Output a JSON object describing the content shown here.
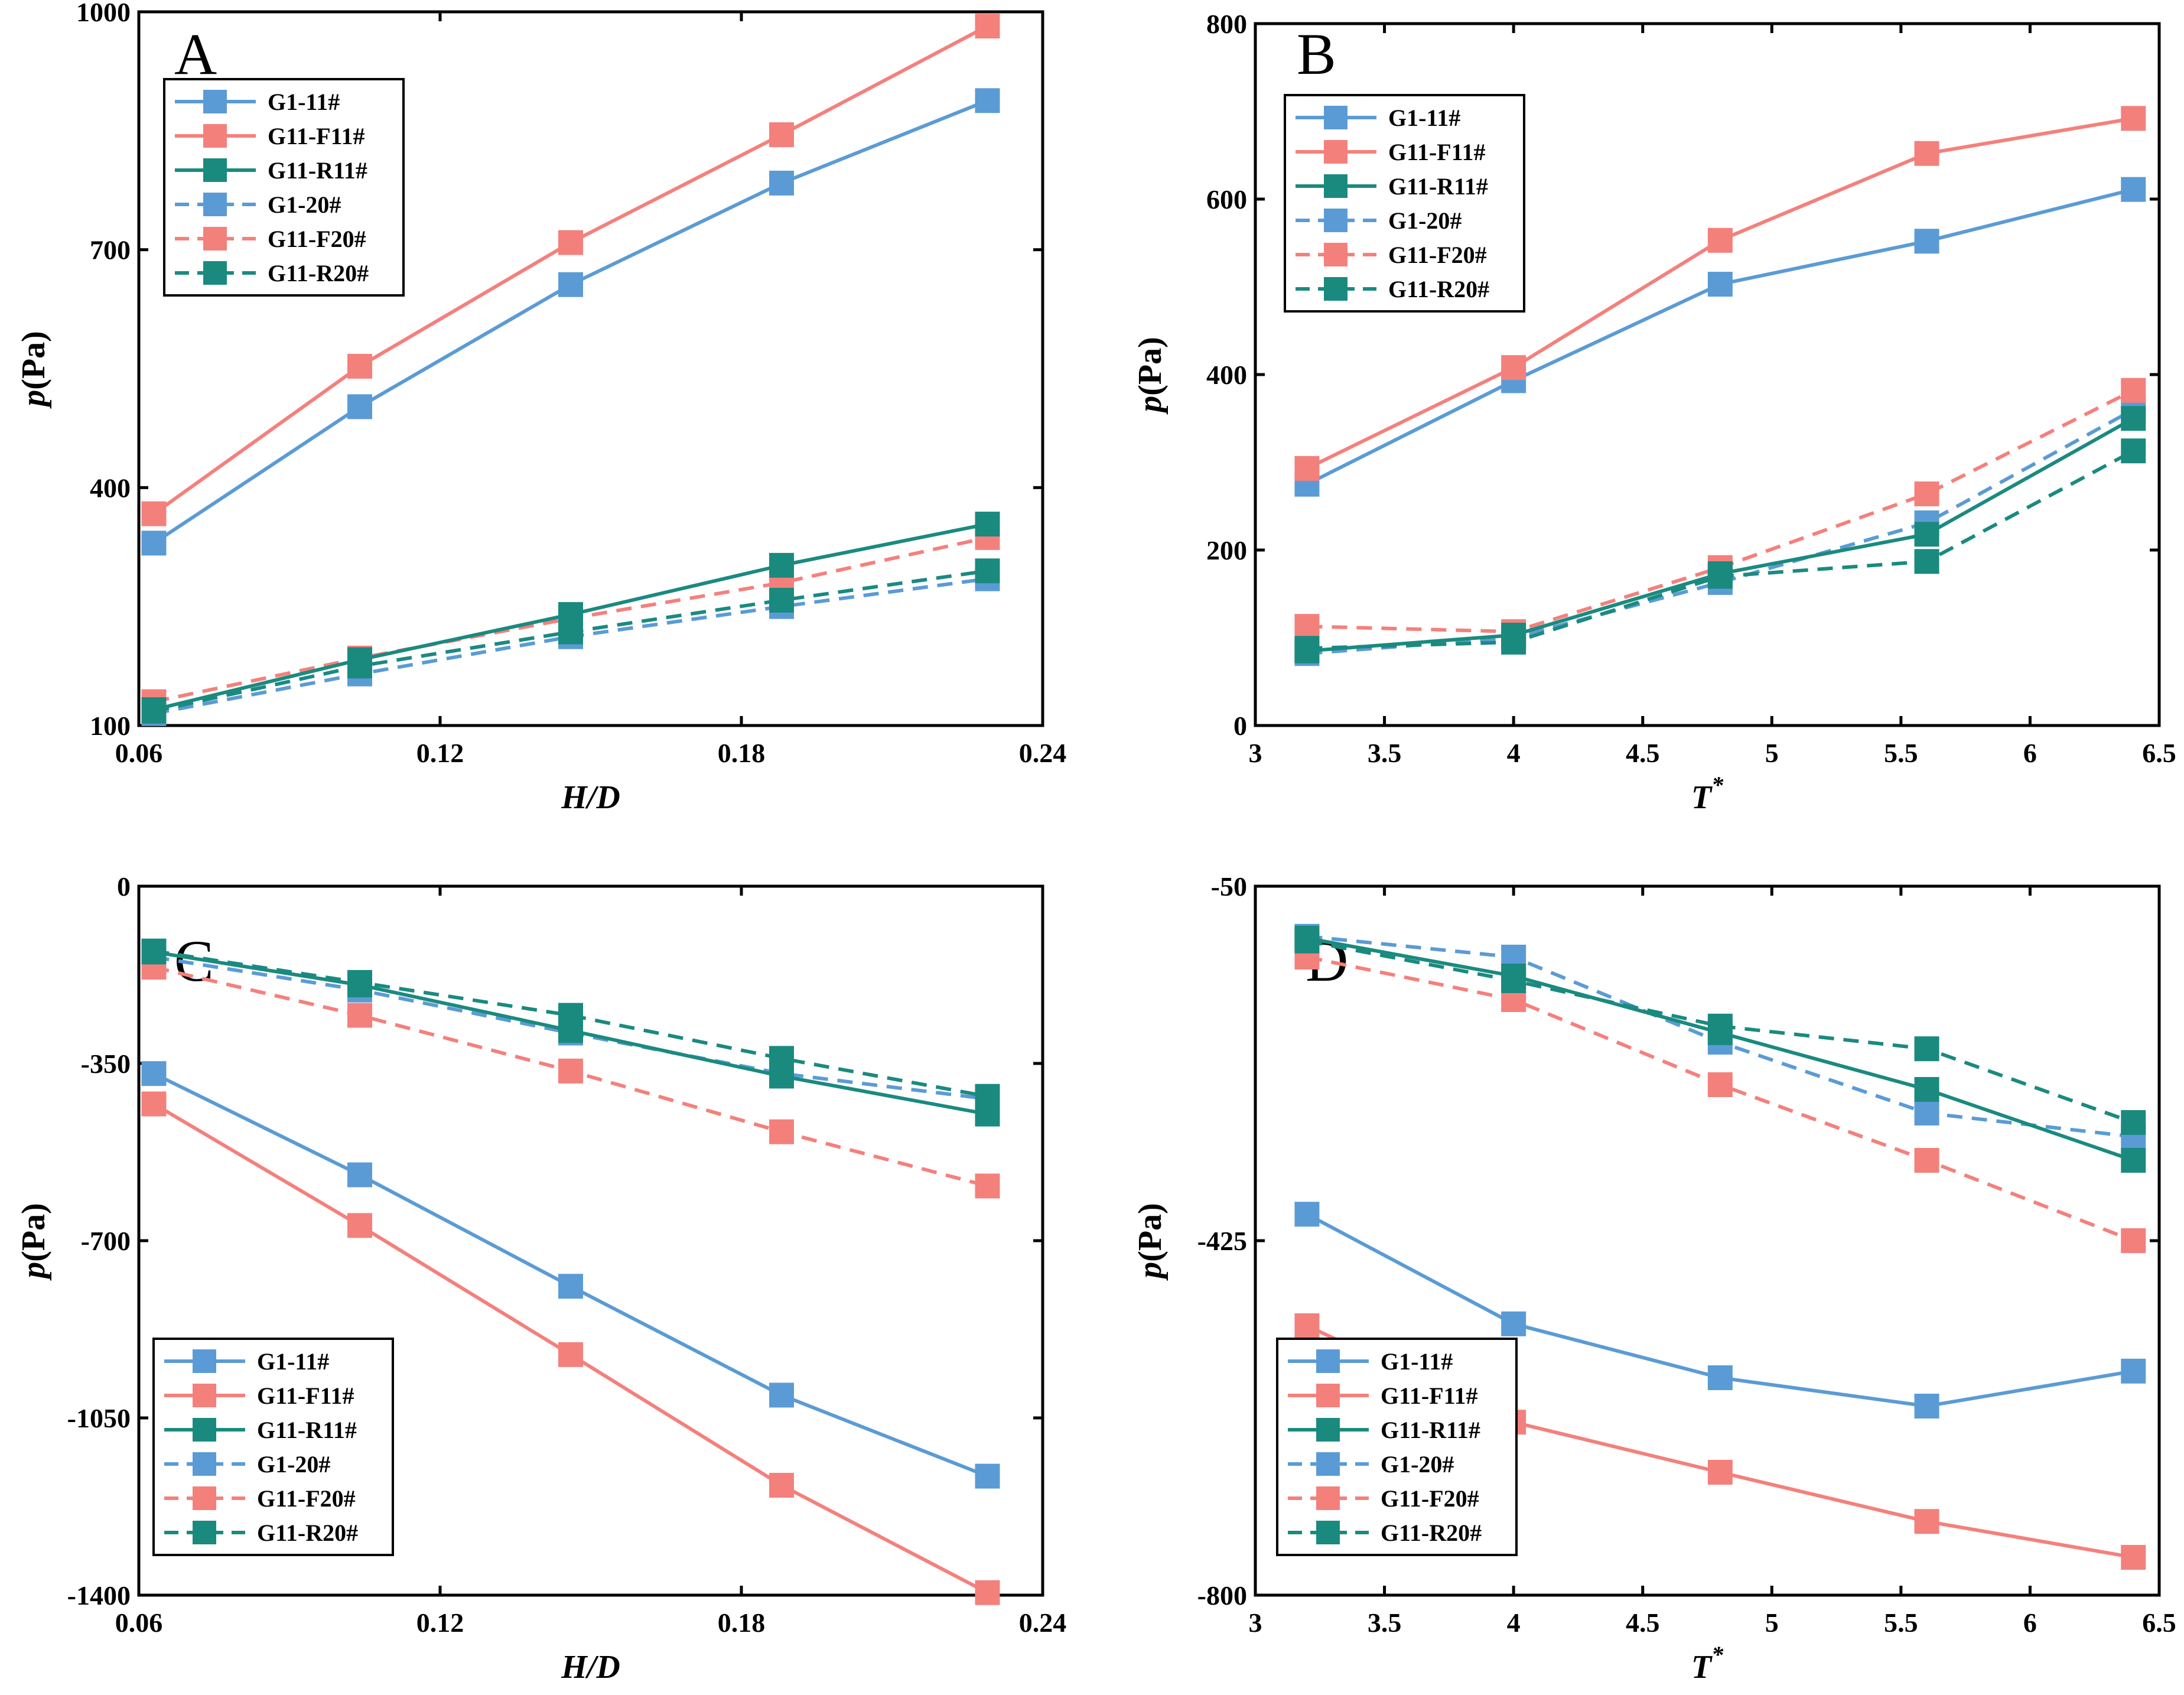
{
  "colors": {
    "blue": "#5b9bd5",
    "red": "#f4807c",
    "green": "#1a8a7f"
  },
  "chart_data": [
    {
      "id": "A",
      "type": "line",
      "panel_label": "A",
      "xlabel": "H/D",
      "ylabel_var": "p",
      "ylabel_unit": "(Pa)",
      "xlim": [
        0.06,
        0.24
      ],
      "ylim": [
        100,
        1000
      ],
      "xticks": [
        0.06,
        0.12,
        0.18,
        0.24
      ],
      "xtick_labels": [
        "0.06",
        "0.12",
        "0.18",
        "0.24"
      ],
      "yticks": [
        100,
        400,
        700,
        1000
      ],
      "ytick_labels": [
        "100",
        "400",
        "700",
        "1000"
      ],
      "x": [
        0.063,
        0.104,
        0.146,
        0.188,
        0.229
      ],
      "legend_position": "upper-left",
      "series": [
        {
          "name": "G1-11#",
          "color": "blue",
          "dashed": false,
          "values": [
            330,
            502,
            656,
            784,
            888
          ]
        },
        {
          "name": "G11-F11#",
          "color": "red",
          "dashed": false,
          "values": [
            367,
            553,
            709,
            845,
            982
          ]
        },
        {
          "name": "G11-R11#",
          "color": "green",
          "dashed": false,
          "values": [
            120,
            183,
            240,
            302,
            354
          ]
        },
        {
          "name": "G1-20#",
          "color": "blue",
          "dashed": true,
          "values": [
            115,
            165,
            212,
            250,
            285
          ]
        },
        {
          "name": "G11-F20#",
          "color": "red",
          "dashed": true,
          "values": [
            130,
            185,
            235,
            280,
            337
          ]
        },
        {
          "name": "G11-R20#",
          "color": "green",
          "dashed": true,
          "values": [
            118,
            175,
            218,
            258,
            295
          ]
        }
      ]
    },
    {
      "id": "B",
      "type": "line",
      "panel_label": "B",
      "xlabel": "T",
      "xlabel_sup": "*",
      "ylabel_var": "p",
      "ylabel_unit": "(Pa)",
      "xlim": [
        3,
        6.5
      ],
      "ylim": [
        0,
        800
      ],
      "xticks": [
        3,
        3.5,
        4,
        4.5,
        5,
        5.5,
        6,
        6.5
      ],
      "xtick_labels": [
        "3",
        "3.5",
        "4",
        "4.5",
        "5",
        "5.5",
        "6",
        "6.5"
      ],
      "yticks": [
        0,
        200,
        400,
        600,
        800
      ],
      "ytick_labels": [
        "0",
        "200",
        "400",
        "600",
        "800"
      ],
      "x": [
        3.2,
        4.0,
        4.8,
        5.6,
        6.4
      ],
      "legend_position": "upper-left",
      "series": [
        {
          "name": "G1-11#",
          "color": "blue",
          "dashed": false,
          "values": [
            275,
            393,
            503,
            552,
            611
          ]
        },
        {
          "name": "G11-F11#",
          "color": "red",
          "dashed": false,
          "values": [
            293,
            408,
            553,
            652,
            692
          ]
        },
        {
          "name": "G11-R11#",
          "color": "green",
          "dashed": false,
          "values": [
            85,
            103,
            173,
            218,
            350
          ]
        },
        {
          "name": "G1-20#",
          "color": "blue",
          "dashed": true,
          "values": [
            82,
            100,
            163,
            231,
            360
          ]
        },
        {
          "name": "G11-F20#",
          "color": "red",
          "dashed": true,
          "values": [
            113,
            107,
            180,
            264,
            382
          ]
        },
        {
          "name": "G11-R20#",
          "color": "green",
          "dashed": true,
          "values": [
            88,
            95,
            170,
            187,
            313
          ]
        }
      ]
    },
    {
      "id": "C",
      "type": "line",
      "panel_label": "C",
      "xlabel": "H/D",
      "ylabel_var": "p",
      "ylabel_unit": "(Pa)",
      "xlim": [
        0.06,
        0.24
      ],
      "ylim": [
        -1400,
        0
      ],
      "xticks": [
        0.06,
        0.12,
        0.18,
        0.24
      ],
      "xtick_labels": [
        "0.06",
        "0.12",
        "0.18",
        "0.24"
      ],
      "yticks": [
        -1400,
        -1050,
        -700,
        -350,
        0
      ],
      "ytick_labels": [
        "-1400",
        "-1050",
        "-700",
        "-350",
        "0"
      ],
      "x": [
        0.063,
        0.104,
        0.146,
        0.188,
        0.229
      ],
      "legend_position": "lower-left",
      "series": [
        {
          "name": "G1-11#",
          "color": "blue",
          "dashed": false,
          "values": [
            -370,
            -570,
            -790,
            -1005,
            -1165
          ]
        },
        {
          "name": "G11-F11#",
          "color": "red",
          "dashed": false,
          "values": [
            -430,
            -670,
            -925,
            -1183,
            -1395
          ]
        },
        {
          "name": "G11-R11#",
          "color": "green",
          "dashed": false,
          "values": [
            -130,
            -195,
            -285,
            -375,
            -450
          ]
        },
        {
          "name": "G1-20#",
          "color": "blue",
          "dashed": true,
          "values": [
            -140,
            -205,
            -290,
            -370,
            -420
          ]
        },
        {
          "name": "G11-F20#",
          "color": "red",
          "dashed": true,
          "values": [
            -160,
            -255,
            -365,
            -485,
            -592
          ]
        },
        {
          "name": "G11-R20#",
          "color": "green",
          "dashed": true,
          "values": [
            -128,
            -190,
            -255,
            -340,
            -415
          ]
        }
      ]
    },
    {
      "id": "D",
      "type": "line",
      "panel_label": "D",
      "xlabel": "T",
      "xlabel_sup": "*",
      "ylabel_var": "p",
      "ylabel_unit": "(Pa)",
      "xlim": [
        3,
        6.5
      ],
      "ylim": [
        -800,
        -50
      ],
      "xticks": [
        3,
        3.5,
        4,
        4.5,
        5,
        5.5,
        6,
        6.5
      ],
      "xtick_labels": [
        "3",
        "3.5",
        "4",
        "4.5",
        "5",
        "5.5",
        "6",
        "6.5"
      ],
      "yticks": [
        -800,
        -425,
        -50
      ],
      "ytick_labels": [
        "-800",
        "-425",
        "-50"
      ],
      "x": [
        3.2,
        4.0,
        4.8,
        5.6,
        6.4
      ],
      "legend_position": "lower-left",
      "series": [
        {
          "name": "G1-11#",
          "color": "blue",
          "dashed": false,
          "values": [
            -397,
            -513,
            -570,
            -600,
            -563
          ]
        },
        {
          "name": "G11-F11#",
          "color": "red",
          "dashed": false,
          "values": [
            -515,
            -617,
            -670,
            -722,
            -760
          ]
        },
        {
          "name": "G11-R11#",
          "color": "green",
          "dashed": false,
          "values": [
            -105,
            -145,
            -205,
            -265,
            -340
          ]
        },
        {
          "name": "G1-20#",
          "color": "blue",
          "dashed": true,
          "values": [
            -103,
            -125,
            -215,
            -290,
            -315
          ]
        },
        {
          "name": "G11-F20#",
          "color": "red",
          "dashed": true,
          "values": [
            -125,
            -170,
            -260,
            -340,
            -425
          ]
        },
        {
          "name": "G11-R20#",
          "color": "green",
          "dashed": true,
          "values": [
            -108,
            -150,
            -198,
            -222,
            -300
          ]
        }
      ]
    }
  ]
}
